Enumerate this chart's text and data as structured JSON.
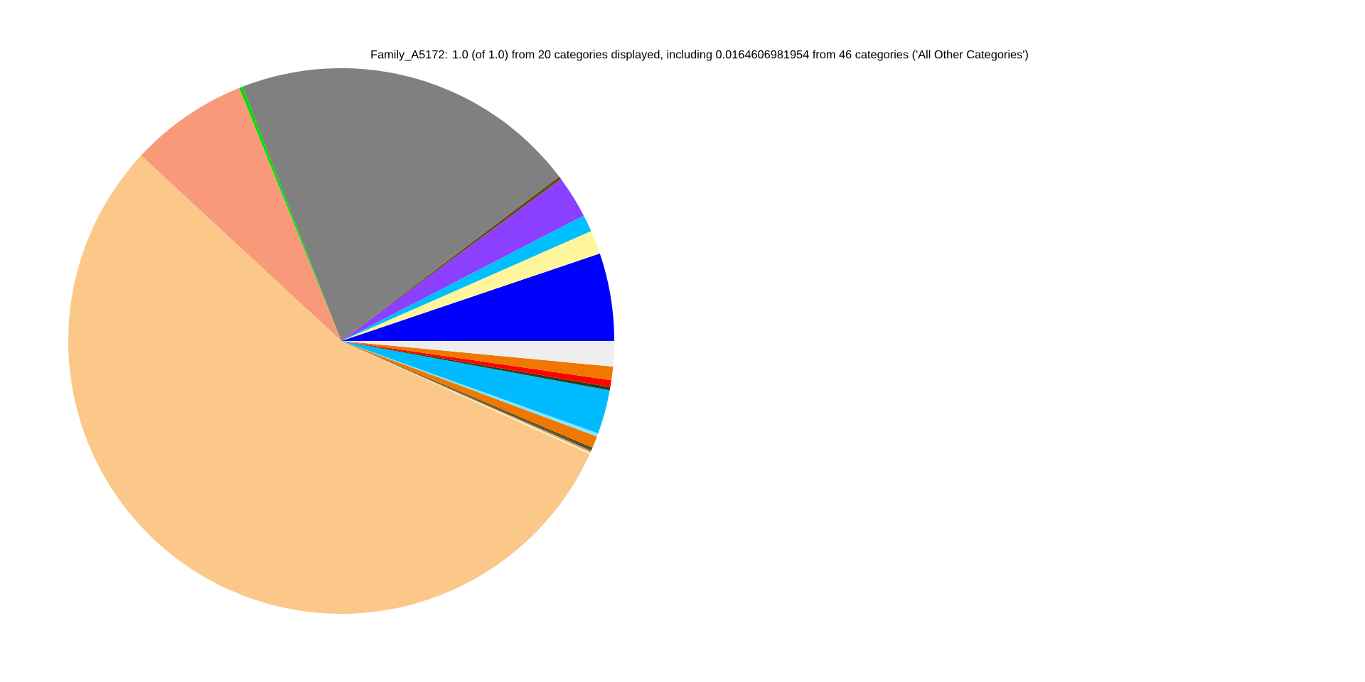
{
  "chart_data": {
    "type": "pie",
    "title": "Family_A5172: 1.0 (of 1.0) from 20 categories displayed, including 0.0164606981954 from 46 categories ('All Other Categories')",
    "categories": [
      null,
      null,
      null,
      null,
      null,
      null,
      null,
      null,
      null,
      null,
      null,
      null,
      null,
      null,
      null,
      null,
      null,
      null,
      null,
      null
    ],
    "values": [
      5.2,
      1.4,
      1.0,
      2.5,
      0.2,
      20.6,
      0.2,
      7.0,
      55.1,
      0.1,
      0.1,
      0.1,
      0.1,
      0.7,
      0.2,
      2.6,
      0.2,
      0.4,
      0.8,
      1.5
    ],
    "colors": [
      "#0000ff",
      "#fff59d",
      "#00bfff",
      "#8c40ff",
      "#6b4a1a",
      "#808080",
      "#00e000",
      "#f8997a",
      "#fcc88a",
      "#fff59d",
      "#c8a0a0",
      "#6b4a1a",
      "#3a4a10",
      "#f07800",
      "#80e8ff",
      "#00bbff",
      "#2a4010",
      "#ff0000",
      "#f07800",
      "#eeeeee"
    ]
  }
}
